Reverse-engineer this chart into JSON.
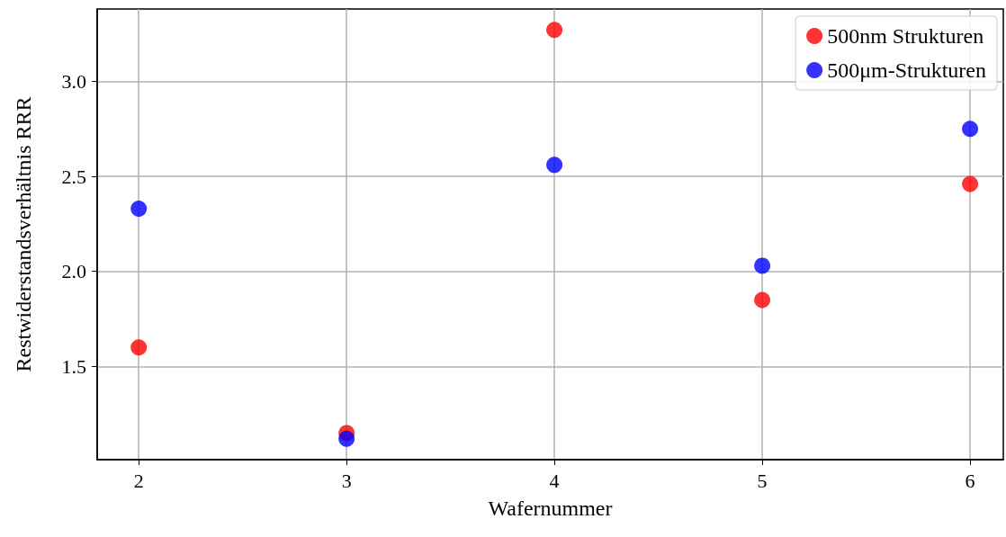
{
  "chart_data": {
    "type": "scatter",
    "xlabel": "Wafernummer",
    "ylabel": "Restwiderstandsverhältnis RRR",
    "series": [
      {
        "name": "500nm Strukturen",
        "color": "#ff0000",
        "x": [
          2,
          3,
          4,
          5,
          6
        ],
        "values": [
          1.6,
          1.15,
          3.27,
          1.85,
          2.46
        ]
      },
      {
        "name": "500μm-Strukturen",
        "color": "#0000ff",
        "x": [
          2,
          3,
          4,
          5,
          6
        ],
        "values": [
          2.33,
          1.12,
          2.56,
          2.03,
          2.75
        ]
      }
    ],
    "xlim": [
      1.8,
      6.16
    ],
    "xticks": [
      2,
      3,
      4,
      5,
      6
    ],
    "ylim": [
      1.01,
      3.38
    ],
    "yticks": [
      1.5,
      {
        "value": 2,
        "label": "2.0"
      },
      2.5,
      {
        "value": 3,
        "label": "3.0"
      }
    ],
    "grid": true,
    "legend": "top right",
    "marker": "circle"
  }
}
